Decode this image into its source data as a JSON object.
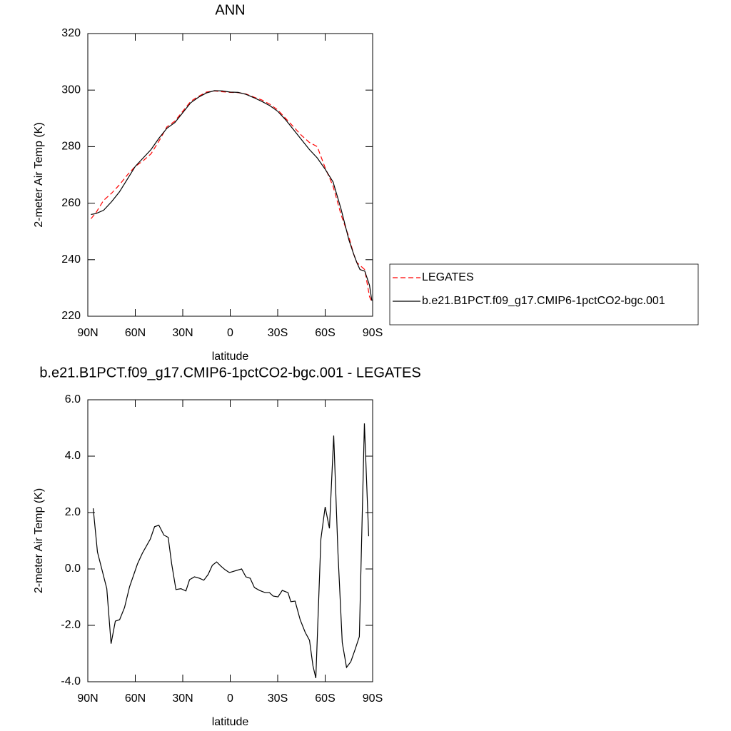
{
  "chart_data": [
    {
      "type": "line",
      "title": "ANN",
      "xlabel": "latitude",
      "ylabel": "2-meter Air Temp (K)",
      "x": [
        88,
        85,
        80,
        75,
        70,
        65,
        60,
        55,
        50,
        45,
        40,
        35,
        30,
        25,
        20,
        15,
        10,
        5,
        0,
        -5,
        -10,
        -15,
        -20,
        -25,
        -30,
        -35,
        -40,
        -45,
        -50,
        -55,
        -60,
        -65,
        -70,
        -75,
        -78,
        -80,
        -82,
        -85,
        -88,
        -89.5
      ],
      "series": [
        {
          "name": "LEGATES",
          "color": "#ff0000",
          "dashed": true,
          "values": [
            254.5,
            256.5,
            261,
            263.5,
            266.5,
            270,
            273,
            275,
            277.5,
            282,
            287,
            289,
            292.5,
            296,
            297.8,
            299.3,
            299.7,
            299.4,
            299.2,
            299.1,
            298.6,
            297.5,
            296.5,
            295,
            293,
            290,
            287,
            284,
            281.5,
            280,
            272.5,
            266,
            256,
            248,
            242,
            239,
            238,
            236.5,
            227,
            225
          ]
        },
        {
          "name": "b.e21.B1PCT.f09_g17.CMIP6-1pctCO2-bgc.001",
          "color": "#000000",
          "dashed": false,
          "values": [
            256,
            256.3,
            257.5,
            260.5,
            264,
            268.5,
            273,
            276,
            279,
            283,
            286.5,
            288.5,
            292,
            295.5,
            297.5,
            299,
            299.8,
            299.7,
            299.3,
            299.2,
            298.5,
            297.3,
            296,
            294.5,
            292.5,
            289.5,
            286,
            282.5,
            279,
            276,
            272,
            267.5,
            258,
            247,
            242,
            239,
            236.5,
            236,
            231,
            225.5
          ]
        }
      ],
      "xlim": [
        90,
        -90
      ],
      "xticks": [
        {
          "value": 90,
          "label": "90N"
        },
        {
          "value": 60,
          "label": "60N"
        },
        {
          "value": 30,
          "label": "30N"
        },
        0,
        {
          "value": -30,
          "label": "30S"
        },
        {
          "value": -60,
          "label": "60S"
        },
        {
          "value": -90,
          "label": "90S"
        }
      ],
      "ylim": [
        220,
        320
      ],
      "yticks": [
        220,
        240,
        260,
        280,
        300,
        320
      ],
      "legend": "right"
    },
    {
      "type": "line",
      "title": "b.e21.B1PCT.f09_g17.CMIP6-1pctCO2-bgc.001 - LEGATES",
      "xlabel": "latitude",
      "ylabel": "2-meter Air Temp (K)",
      "x": [
        86.6,
        83.9,
        78,
        75.3,
        72.6,
        69.9,
        66.8,
        63.6,
        58.6,
        55.5,
        50.5,
        47.8,
        45.1,
        41.9,
        39.2,
        37,
        34.3,
        31.1,
        28,
        25.7,
        22.6,
        19.4,
        16.7,
        14,
        11.3,
        8.6,
        5.9,
        3.2,
        0.5,
        -2.3,
        -7.2,
        -9.9,
        -12.6,
        -15.3,
        -18.5,
        -22.1,
        -24.8,
        -27.1,
        -30.2,
        -32.9,
        -36.5,
        -38.3,
        -41,
        -44.2,
        -47.4,
        -50.1,
        -52.3,
        -54.1,
        -57.3,
        -60,
        -62.7,
        -65.4,
        -68.1,
        -70.8,
        -73.5,
        -76.2,
        -78.9,
        -81.6,
        -84.8,
        -87.5
      ],
      "series": [
        {
          "color": "#000000",
          "dashed": false,
          "values": [
            2.15,
            0.6,
            -0.7,
            -2.65,
            -1.85,
            -1.8,
            -1.37,
            -0.63,
            0.18,
            0.56,
            1.06,
            1.5,
            1.55,
            1.2,
            1.12,
            0.18,
            -0.73,
            -0.7,
            -0.78,
            -0.38,
            -0.28,
            -0.33,
            -0.4,
            -0.2,
            0.13,
            0.25,
            0.1,
            -0.03,
            -0.13,
            -0.08,
            0,
            -0.28,
            -0.33,
            -0.66,
            -0.76,
            -0.84,
            -0.84,
            -0.96,
            -0.99,
            -0.76,
            -0.84,
            -1.16,
            -1.14,
            -1.8,
            -2.25,
            -2.53,
            -3.44,
            -3.87,
            1.06,
            2.2,
            1.44,
            4.73,
            0.56,
            -2.61,
            -3.49,
            -3.29,
            -2.86,
            -2.4,
            5.16,
            1.16
          ]
        }
      ],
      "xlim": [
        90,
        -90
      ],
      "xticks": [
        {
          "value": 90,
          "label": "90N"
        },
        {
          "value": 60,
          "label": "60N"
        },
        {
          "value": 30,
          "label": "30N"
        },
        0,
        {
          "value": -30,
          "label": "30S"
        },
        {
          "value": -60,
          "label": "60S"
        },
        {
          "value": -90,
          "label": "90S"
        }
      ],
      "ylim": [
        -4,
        6
      ],
      "yticks": [
        {
          "value": -4,
          "label": "-4.0"
        },
        {
          "value": -2,
          "label": "-2.0"
        },
        {
          "value": 0,
          "label": "0.0"
        },
        {
          "value": 2,
          "label": "2.0"
        },
        {
          "value": 4,
          "label": "4.0"
        },
        {
          "value": 6,
          "label": "6.0"
        }
      ]
    }
  ]
}
